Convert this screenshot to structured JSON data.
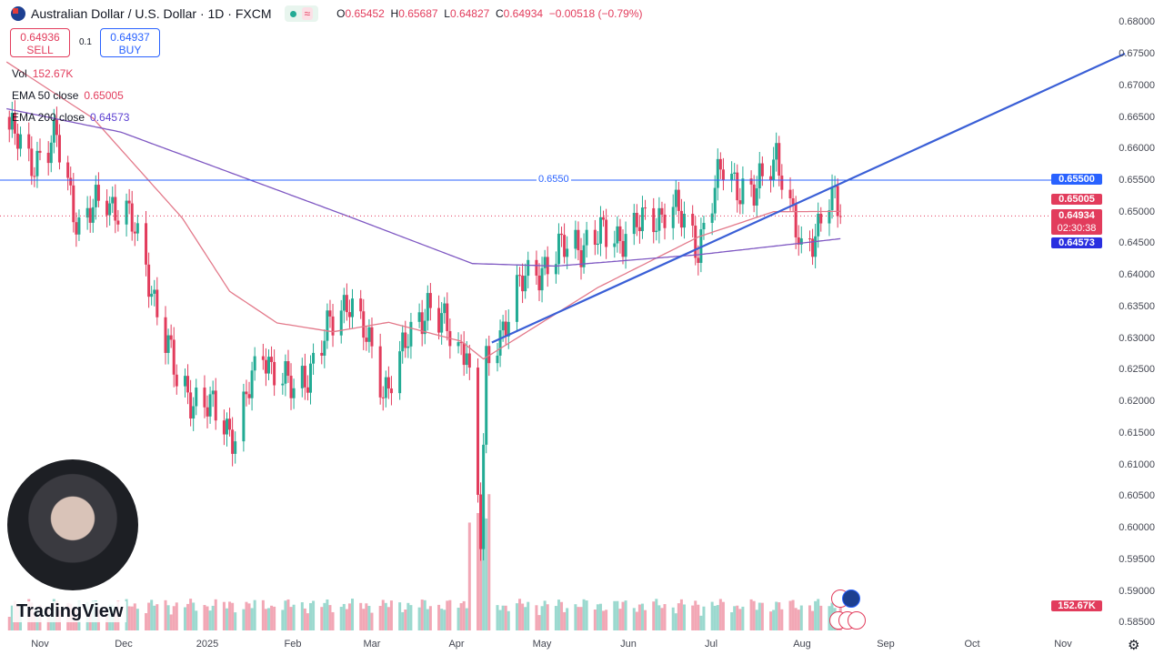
{
  "header": {
    "title": "Australian Dollar / U.S. Dollar · 1D · FXCM",
    "o_label": "O",
    "o": "0.65452",
    "h_label": "H",
    "h": "0.65687",
    "l_label": "L",
    "l": "0.64827",
    "c_label": "C",
    "c": "0.64934",
    "change": "−0.00518 (−0.79%)",
    "wave": "≈"
  },
  "trade": {
    "sell_price": "0.64936",
    "sell_label": "SELL",
    "spread": "0.1",
    "buy_price": "0.64937",
    "buy_label": "BUY"
  },
  "legend": {
    "vol_label": "Vol",
    "vol": "152.67K",
    "ema50_label": "EMA 50 close",
    "ema50": "0.65005",
    "ema200_label": "EMA 200 close",
    "ema200": "0.64573"
  },
  "price_axis": [
    "0.68000",
    "0.67500",
    "0.67000",
    "0.66500",
    "0.66000",
    "0.65500",
    "0.65000",
    "0.64500",
    "0.64000",
    "0.63500",
    "0.63000",
    "0.62500",
    "0.62000",
    "0.61500",
    "0.61000",
    "0.60500",
    "0.60000",
    "0.59500",
    "0.59000",
    "0.58500"
  ],
  "time_axis": [
    "Nov",
    "Dec",
    "2025",
    "Feb",
    "Mar",
    "Apr",
    "May",
    "Jun",
    "Jul",
    "Aug",
    "Sep",
    "Oct",
    "Nov"
  ],
  "tags": {
    "hline": "0.65500",
    "ema50": "0.65005",
    "close": "0.64934",
    "countdown": "02:30:38",
    "ema200": "0.64573",
    "volume": "152.67K"
  },
  "hline_label": "0.6550",
  "brand": "TradingView",
  "colors": {
    "up": "#22ab94",
    "down": "#e23c5c",
    "ema50": "#e3798a",
    "ema200": "#7e57c2",
    "trend": "#3a5fd6",
    "hline": "#2962ff"
  },
  "chart_data": {
    "type": "candlestick",
    "symbol": "AUDUSD",
    "timeframe": "1D",
    "ylim": [
      0.585,
      0.68
    ],
    "close_keypoints": [
      [
        "2024-10-21",
        0.663
      ],
      [
        "2024-10-28",
        0.658
      ],
      [
        "2024-11-07",
        0.661
      ],
      [
        "2024-11-15",
        0.648
      ],
      [
        "2024-11-25",
        0.652
      ],
      [
        "2024-12-02",
        0.65
      ],
      [
        "2024-12-10",
        0.64
      ],
      [
        "2024-12-20",
        0.623
      ],
      [
        "2024-12-31",
        0.619
      ],
      [
        "2025-01-10",
        0.615
      ],
      [
        "2025-01-20",
        0.628
      ],
      [
        "2025-01-31",
        0.621
      ],
      [
        "2025-02-10",
        0.629
      ],
      [
        "2025-02-20",
        0.637
      ],
      [
        "2025-03-04",
        0.622
      ],
      [
        "2025-03-14",
        0.63
      ],
      [
        "2025-03-20",
        0.636
      ],
      [
        "2025-03-31",
        0.628
      ],
      [
        "2025-04-03",
        0.63
      ],
      [
        "2025-04-08",
        0.598
      ],
      [
        "2025-04-10",
        0.625
      ],
      [
        "2025-04-20",
        0.637
      ],
      [
        "2025-05-01",
        0.642
      ],
      [
        "2025-05-12",
        0.645
      ],
      [
        "2025-06-02",
        0.647
      ],
      [
        "2025-06-15",
        0.651
      ],
      [
        "2025-06-25",
        0.645
      ],
      [
        "2025-07-04",
        0.657
      ],
      [
        "2025-07-15",
        0.652
      ],
      [
        "2025-07-23",
        0.66
      ],
      [
        "2025-07-28",
        0.65
      ],
      [
        "2025-08-01",
        0.643
      ],
      [
        "2025-08-11",
        0.652
      ],
      [
        "2025-08-15",
        0.6493
      ]
    ],
    "ema50_keypoints": [
      [
        "2024-10-20",
        0.6737
      ],
      [
        "2024-11-20",
        0.6648
      ],
      [
        "2024-12-22",
        0.649
      ],
      [
        "2025-01-08",
        0.6374
      ],
      [
        "2025-01-25",
        0.6324
      ],
      [
        "2025-02-14",
        0.631
      ],
      [
        "2025-03-06",
        0.6325
      ],
      [
        "2025-04-01",
        0.6295
      ],
      [
        "2025-04-09",
        0.6267
      ],
      [
        "2025-04-21",
        0.63
      ],
      [
        "2025-05-20",
        0.638
      ],
      [
        "2025-06-25",
        0.646
      ],
      [
        "2025-07-22",
        0.65
      ],
      [
        "2025-08-15",
        0.65005
      ]
    ],
    "ema200_keypoints": [
      [
        "2024-10-20",
        0.6663
      ],
      [
        "2024-11-30",
        0.6626
      ],
      [
        "2025-02-20",
        0.6492
      ],
      [
        "2025-04-05",
        0.6418
      ],
      [
        "2025-05-05",
        0.6414
      ],
      [
        "2025-06-25",
        0.6432
      ],
      [
        "2025-08-15",
        0.64573
      ]
    ],
    "trendline": [
      [
        "2025-04-12",
        0.6293
      ],
      [
        "2025-11-25",
        0.675
      ]
    ],
    "horizontal_line": 0.655
  }
}
